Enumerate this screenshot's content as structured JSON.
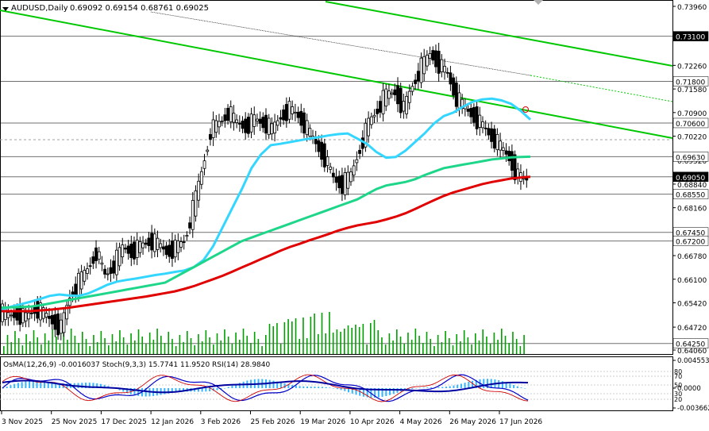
{
  "header": {
    "symbol": "AUDUSD,Daily",
    "ohlc": "0.69092 0.69154 0.68761 0.69025"
  },
  "osc_header": "OsMA(12,26,9) -0.0016037  Stoch(9,3,3) 15.7741 11.9520  RSI(14) 28.9840",
  "colors": {
    "up_candle": "#000000",
    "down_candle": "#000000",
    "ma_fast": "#33d6ff",
    "ma_mid": "#1ed68a",
    "ma_slow": "#e00000",
    "channel": "#00c800",
    "volume": "#00a000",
    "osma": "#33b5ff",
    "stoch_main": "#0000c8",
    "stoch_signal": "#d00000"
  },
  "chart_data": {
    "type": "line",
    "title": "AUDUSD,Daily",
    "price_axis": {
      "ylim": [
        0.6406,
        0.7396
      ],
      "ticks": [
        "0.73960",
        "0.72260",
        "0.71580",
        "0.70900",
        "0.70220",
        "0.69520",
        "0.68840",
        "0.68160",
        "0.67460",
        "0.66780",
        "0.66100",
        "0.65420",
        "0.64720",
        "0.64060"
      ],
      "grid": false
    },
    "x_ticks": [
      "3 Nov 2025",
      "25 Nov 2025",
      "17 Dec 2025",
      "12 Jan 2026",
      "3 Feb 2026",
      "25 Feb 2026",
      "19 Mar 2026",
      "10 Apr 2026",
      "4 May 2026",
      "26 May 2026",
      "17 Jun 2026"
    ],
    "levels": [
      {
        "label": "0.73100",
        "value": 0.731,
        "highlight": true
      },
      {
        "label": "0.71800",
        "value": 0.718
      },
      {
        "label": "0.70600",
        "value": 0.706
      },
      {
        "label": "0.69630",
        "value": 0.6963
      },
      {
        "label": "0.69050",
        "value": 0.6905,
        "highlight": true
      },
      {
        "label": "0.68550",
        "value": 0.6855
      },
      {
        "label": "0.67450",
        "value": 0.6745
      },
      {
        "label": "0.67200",
        "value": 0.672
      },
      {
        "label": "0.64250",
        "value": 0.6425
      }
    ],
    "series": [
      {
        "values": [
          0.6522,
          0.6531,
          0.6538,
          0.6545,
          0.6553,
          0.6562,
          0.6566,
          0.6563,
          0.6562,
          0.6569,
          0.6581,
          0.6594,
          0.6603,
          0.6608,
          0.6612,
          0.6617,
          0.6622,
          0.6626,
          0.6631,
          0.6635,
          0.6645,
          0.6665,
          0.6705,
          0.676,
          0.6815,
          0.687,
          0.693,
          0.697,
          0.6996,
          0.7,
          0.7005,
          0.701,
          0.7015,
          0.7019,
          0.7024,
          0.7028,
          0.703,
          0.7015,
          0.7,
          0.6976,
          0.696,
          0.6962,
          0.698,
          0.7005,
          0.703,
          0.7059,
          0.708,
          0.709,
          0.7107,
          0.7121,
          0.7128,
          0.713,
          0.7125,
          0.7115,
          0.7095,
          0.707
        ]
      },
      {
        "values": [
          0.6528,
          0.6529,
          0.653,
          0.6531,
          0.6535,
          0.654,
          0.6545,
          0.655,
          0.6555,
          0.656,
          0.6565,
          0.657,
          0.6575,
          0.658,
          0.6585,
          0.659,
          0.6595,
          0.66,
          0.6615,
          0.663,
          0.6645,
          0.666,
          0.6675,
          0.669,
          0.6705,
          0.672,
          0.673,
          0.674,
          0.675,
          0.676,
          0.677,
          0.678,
          0.679,
          0.68,
          0.681,
          0.682,
          0.683,
          0.684,
          0.6855,
          0.687,
          0.688,
          0.6885,
          0.689,
          0.6898,
          0.691,
          0.692,
          0.693,
          0.6935,
          0.694,
          0.6945,
          0.695,
          0.6955,
          0.6958,
          0.6961,
          0.6962,
          0.6963
        ]
      },
      {
        "values": [
          0.6518,
          0.6518,
          0.6518,
          0.6518,
          0.652,
          0.6522,
          0.6525,
          0.6528,
          0.6532,
          0.6536,
          0.654,
          0.6544,
          0.6548,
          0.6552,
          0.6556,
          0.656,
          0.6565,
          0.657,
          0.6575,
          0.6582,
          0.659,
          0.66,
          0.661,
          0.662,
          0.6632,
          0.6644,
          0.6656,
          0.6668,
          0.668,
          0.6692,
          0.6703,
          0.6712,
          0.6722,
          0.6731,
          0.674,
          0.675,
          0.6758,
          0.6765,
          0.677,
          0.6775,
          0.6782,
          0.679,
          0.68,
          0.6812,
          0.6825,
          0.6838,
          0.685,
          0.686,
          0.6868,
          0.6876,
          0.6884,
          0.689,
          0.6895,
          0.69,
          0.6903,
          0.6905
        ]
      }
    ],
    "price_path": [
      0.6515,
      0.6505,
      0.651,
      0.65,
      0.6525,
      0.651,
      0.649,
      0.647,
      0.656,
      0.66,
      0.664,
      0.669,
      0.662,
      0.665,
      0.67,
      0.669,
      0.6705,
      0.672,
      0.671,
      0.669,
      0.67,
      0.672,
      0.681,
      0.692,
      0.704,
      0.706,
      0.709,
      0.706,
      0.705,
      0.707,
      0.706,
      0.704,
      0.708,
      0.71,
      0.708,
      0.704,
      0.7,
      0.696,
      0.69,
      0.688,
      0.691,
      0.699,
      0.706,
      0.71,
      0.714,
      0.715,
      0.71,
      0.717,
      0.722,
      0.726,
      0.723,
      0.72,
      0.713,
      0.71,
      0.708,
      0.705,
      0.702,
      0.699,
      0.696,
      0.6905,
      0.69
    ]
  }
}
